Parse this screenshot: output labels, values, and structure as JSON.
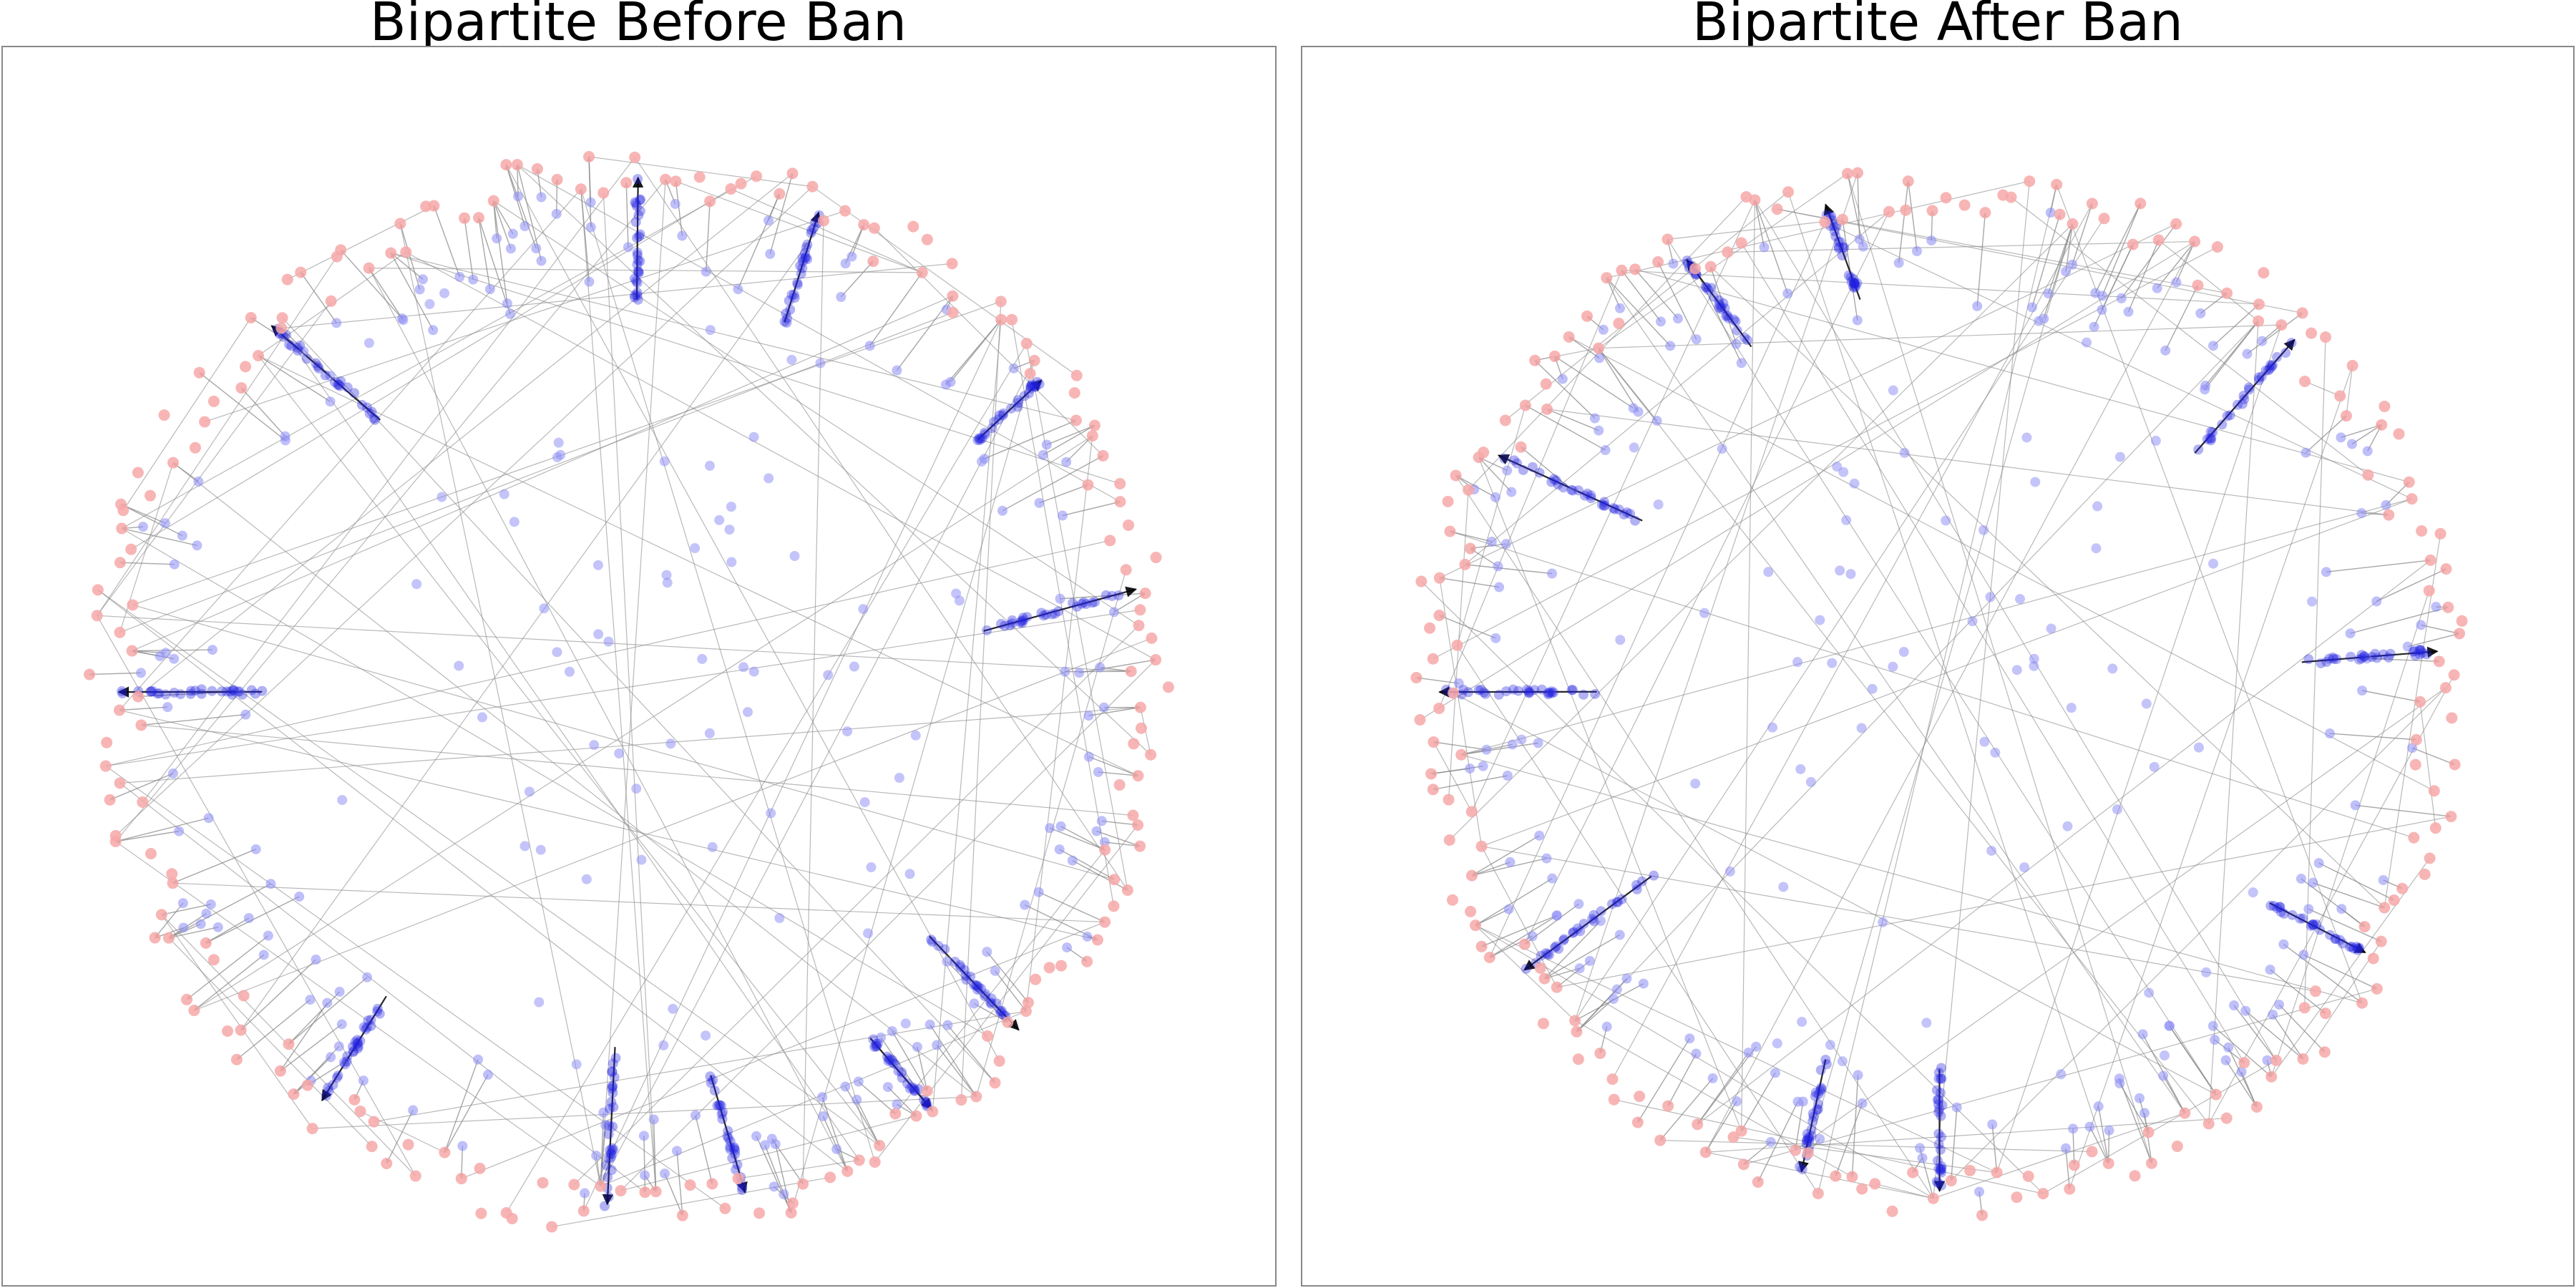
{
  "panels": [
    {
      "title": "Bipartite Before Ban",
      "graph": {
        "type": "bipartite-network",
        "layout": "circular",
        "node_colors": {
          "outer": "#f7a8a8",
          "inner": "#8a8af5",
          "cluster": "#1f1fe0"
        },
        "edge_color": "#8a8a8a",
        "edge_color_strong": "#000000",
        "arrows": true
      }
    },
    {
      "title": "Bipartite After Ban",
      "graph": {
        "type": "bipartite-network",
        "layout": "circular",
        "node_colors": {
          "outer": "#f7a8a8",
          "inner": "#8a8af5",
          "cluster": "#1f1fe0"
        },
        "edge_color": "#8a8a8a",
        "edge_color_strong": "#000000",
        "arrows": true
      }
    }
  ]
}
